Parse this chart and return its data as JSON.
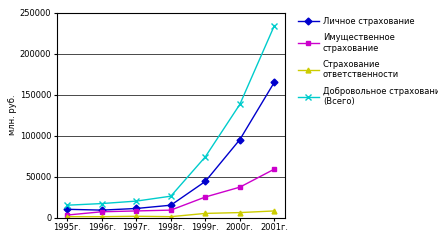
{
  "years": [
    "1995г.",
    "1996г.",
    "1997г.",
    "1998г.",
    "1999г.",
    "2000г.",
    "2001г."
  ],
  "x": [
    0,
    1,
    2,
    3,
    4,
    5,
    6
  ],
  "lichnoe": [
    10000,
    9000,
    11000,
    15000,
    44000,
    95000,
    165000
  ],
  "imushchestvennoe": [
    3000,
    7000,
    8000,
    9000,
    25000,
    37000,
    59000
  ],
  "otvetstvennosti": [
    1000,
    1000,
    1500,
    1000,
    5000,
    6000,
    8000
  ],
  "dobrovolnoe": [
    15000,
    17000,
    20000,
    26000,
    74000,
    138000,
    234000
  ],
  "colors": {
    "lichnoe": "#0000cc",
    "imushchestvennoe": "#cc00cc",
    "otvetstvennosti": "#cccc00",
    "dobrovolnoe": "#00cccc"
  },
  "legend_labels": [
    "Личное страхование",
    "Имущественное\nстрахование",
    "Страхование\nответственности",
    "Добровольное страхование\n(Всего)"
  ],
  "ylabel": "млн. руб.",
  "ylim": [
    0,
    250000
  ],
  "yticks": [
    0,
    50000,
    100000,
    150000,
    200000,
    250000
  ],
  "bg_color": "#ffffff",
  "grid_color": "#000000"
}
